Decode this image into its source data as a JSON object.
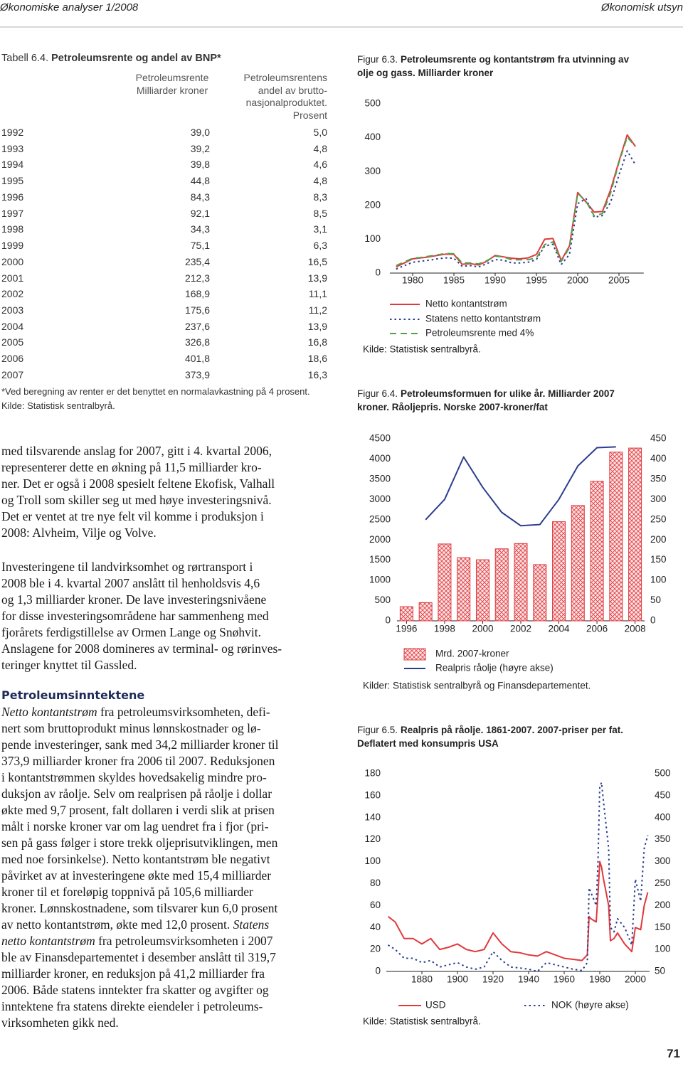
{
  "header": {
    "left": "Økonomiske analyser 1/2008",
    "right": "Økonomisk utsyn"
  },
  "table": {
    "label": "Tabell 6.4.",
    "title": "Petroleumsrente og andel av BNP*",
    "columns": [
      [
        "Petroleumsrente",
        "Milliarder kroner"
      ],
      [
        "Petroleumsrentens",
        "andel av brutto-",
        "nasjonalproduktet.",
        "Prosent"
      ]
    ],
    "rows": [
      [
        "1992",
        "39,0",
        "5,0"
      ],
      [
        "1993",
        "39,2",
        "4,8"
      ],
      [
        "1994",
        "39,8",
        "4,6"
      ],
      [
        "1995",
        "44,8",
        "4,8"
      ],
      [
        "1996",
        "84,3",
        "8,3"
      ],
      [
        "1997",
        "92,1",
        "8,5"
      ],
      [
        "1998",
        "34,3",
        "3,1"
      ],
      [
        "1999",
        "75,1",
        "6,3"
      ],
      [
        "2000",
        "235,4",
        "16,5"
      ],
      [
        "2001",
        "212,3",
        "13,9"
      ],
      [
        "2002",
        "168,9",
        "11,1"
      ],
      [
        "2003",
        "175,6",
        "11,2"
      ],
      [
        "2004",
        "237,6",
        "13,9"
      ],
      [
        "2005",
        "326,8",
        "16,8"
      ],
      [
        "2006",
        "401,8",
        "18,6"
      ],
      [
        "2007",
        "373,9",
        "16,3"
      ]
    ],
    "notes": [
      "*Ved beregning av renter er det benyttet en normalavkastning på 4 prosent.",
      "Kilde: Statistisk sentralbyrå."
    ]
  },
  "text": {
    "paragraphs": [
      {
        "lines": [
          "med tilsvarende anslag for 2007, gitt i 4. kvartal 2006,",
          "representerer dette en økning på 11,5 milliarder kro-",
          "ner. Det er også i 2008 spesielt feltene Ekofisk, Valhall",
          "og Troll som skiller seg ut med høye investeringsnivå.",
          "Det er ventet at tre nye felt vil komme i produksjon i",
          "2008: Alvheim, Vilje og Volve."
        ]
      },
      {
        "lines": [
          "Investeringene til landvirksomhet og rørtransport i",
          "2008 ble i 4. kvartal 2007 anslått til henholdsvis 4,6",
          "og 1,3 milliarder kroner. De lave investeringsnivåene",
          "for disse investeringsområdene har sammenheng med",
          "fjorårets ferdigstillelse av Ormen Lange og Snøhvit.",
          "Anslagene for 2008 domineres av terminal- og rørinves-",
          "teringer knyttet til Gassled."
        ]
      },
      {
        "heading": "Petroleumsinntektene",
        "lines": [
          [
            {
              "text": "Netto kontantstrøm",
              "italic": true
            },
            " fra petroleumsvirksomheten, defi-"
          ],
          "nert som bruttoprodukt minus lønnskostnader og lø-",
          "pende investeringer, sank med 34,2 milliarder kroner til",
          "373,9 milliarder kroner fra 2006 til 2007. Reduksjonen",
          "i kontantstrømmen skyldes hovedsakelig mindre pro-",
          "duksjon av råolje. Selv om realprisen på råolje i dollar",
          "økte med 9,7 prosent, falt dollaren i verdi slik at prisen",
          "målt i norske kroner var om lag uendret fra i fjor (pri-",
          "sen på gass følger i store trekk oljeprisutviklingen, men",
          "med noe forsinkelse). Netto kontantstrøm ble negativt",
          "påvirket av at investeringene økte med 15,4 milliarder",
          "kroner til et foreløpig toppnivå på 105,6 milliarder",
          "kroner. Lønnskostnadene, som tilsvarer kun 6,0 prosent",
          [
            "av netto kontantstrøm, økte med 12,0 prosent. ",
            {
              "text": "Statens",
              "italic": true
            }
          ],
          [
            {
              "text": "netto kontantstrøm",
              "italic": true
            },
            " fra petroleumsvirksomheten i 2007"
          ],
          "ble av Finansdepartementet i desember anslått til 319,7",
          "milliarder kroner, en reduksjon på 41,2 milliarder fra",
          "2006. Både statens inntekter fra skatter og avgifter og",
          "inntektene fra statens direkte eiendeler i petroleums-",
          "virksomheten gikk ned."
        ]
      }
    ]
  },
  "page_number": "71",
  "chart_data": [
    {
      "type": "line",
      "label": "Figur 6.3.",
      "title": [
        "Petroleumsrente og kontantstrøm fra utvinning av",
        "olje og  gass. Milliarder kroner"
      ],
      "x": [
        1978,
        1979,
        1980,
        1981,
        1982,
        1983,
        1984,
        1985,
        1986,
        1987,
        1988,
        1989,
        1990,
        1991,
        1992,
        1993,
        1994,
        1995,
        1996,
        1997,
        1998,
        1999,
        2000,
        2001,
        2002,
        2003,
        2004,
        2005,
        2006,
        2007
      ],
      "xlim": [
        1978,
        2008
      ],
      "xticks": [
        1980,
        1985,
        1990,
        1995,
        2000,
        2005
      ],
      "ylim": [
        0,
        500
      ],
      "yticks": [
        0,
        100,
        200,
        300,
        400,
        500
      ],
      "series": [
        {
          "name": "Netto kontantstrøm",
          "color": "#e0393e",
          "dash": "solid",
          "values": [
            18,
            30,
            42,
            45,
            48,
            52,
            56,
            55,
            26,
            28,
            24,
            35,
            52,
            48,
            44,
            42,
            45,
            55,
            100,
            102,
            37,
            80,
            238,
            210,
            180,
            182,
            247,
            330,
            408.1,
            373.9
          ]
        },
        {
          "name": "Statens netto kontantstrøm",
          "color": "#2b3d8f",
          "dash": "dotted",
          "values": [
            12,
            22,
            32,
            35,
            38,
            42,
            45,
            44,
            20,
            22,
            18,
            28,
            40,
            38,
            30,
            30,
            32,
            40,
            80,
            85,
            25,
            55,
            205,
            220,
            165,
            170,
            210,
            290,
            360.9,
            319.7
          ]
        },
        {
          "name": "Petroleumsrente med 4%",
          "color": "#55a04b",
          "dash": "dashed",
          "values": [
            22,
            33,
            44,
            46,
            50,
            54,
            58,
            57,
            30,
            30,
            27,
            37,
            50,
            48,
            39.0,
            39.2,
            39.8,
            44.8,
            84.3,
            92.1,
            34.3,
            75.1,
            235.4,
            212.3,
            168.9,
            175.6,
            237.6,
            326.8,
            401.8,
            373.9
          ]
        }
      ],
      "source": "Kilde: Statistisk sentralbyrå."
    },
    {
      "type": "combo",
      "label": "Figur  6.4.",
      "title": [
        "Petroleumsformuen for ulike år.  Milliarder 2007",
        "kroner. Råoljepris. Norske 2007-kroner/fat"
      ],
      "x": [
        1996,
        1997,
        1998,
        1999,
        2000,
        2001,
        2002,
        2003,
        2004,
        2005,
        2006,
        2007,
        2008
      ],
      "xlim": [
        1995.5,
        2008.5
      ],
      "xticks": [
        1996,
        1998,
        2000,
        2002,
        2004,
        2006,
        2008
      ],
      "ylim": [
        0,
        4500
      ],
      "yticks": [
        0,
        500,
        1000,
        1500,
        2000,
        2500,
        3000,
        3500,
        4000,
        4500
      ],
      "y2lim": [
        0,
        450
      ],
      "y2ticks": [
        0,
        50,
        100,
        150,
        200,
        250,
        300,
        350,
        400,
        450
      ],
      "series": [
        {
          "name": "Mrd. 2007-kroner",
          "type": "bar",
          "color": "#e0393e",
          "values": [
            350,
            450,
            1900,
            1560,
            1510,
            1780,
            1910,
            1390,
            2450,
            2850,
            3450,
            4170,
            4270
          ]
        },
        {
          "name": "Realpris råolje (høyre akse)",
          "type": "line",
          "axis": "y2",
          "color": "#2b3d8f",
          "dash": "solid",
          "values": [
            null,
            250,
            300,
            405,
            330,
            268,
            235,
            238,
            300,
            383,
            428,
            430,
            null
          ]
        }
      ],
      "source": "Kilder: Statistisk sentralbyrå og Finansdepartementet."
    },
    {
      "type": "line",
      "label": "Figur 6.5.",
      "title": [
        "Realpris på råolje. 1861-2007. 2007-priser per fat.",
        "Deflatert med konsumpris USA"
      ],
      "x": [
        1861,
        1865,
        1870,
        1875,
        1880,
        1885,
        1890,
        1895,
        1900,
        1905,
        1910,
        1915,
        1920,
        1925,
        1930,
        1935,
        1940,
        1945,
        1950,
        1955,
        1960,
        1965,
        1970,
        1973,
        1974,
        1975,
        1978,
        1979,
        1980,
        1981,
        1982,
        1985,
        1986,
        1988,
        1990,
        1994,
        1998,
        2000,
        2003,
        2005,
        2007
      ],
      "xlim": [
        1860,
        2008
      ],
      "xticks": [
        1880,
        1900,
        1920,
        1940,
        1960,
        1980,
        2000
      ],
      "ylim": [
        0,
        180
      ],
      "yticks": [
        0,
        20,
        40,
        60,
        80,
        100,
        120,
        140,
        160,
        180
      ],
      "y2lim": [
        50,
        500
      ],
      "y2ticks": [
        50,
        100,
        150,
        200,
        250,
        300,
        350,
        400,
        450,
        500
      ],
      "series": [
        {
          "name": "USD",
          "color": "#e0393e",
          "dash": "solid",
          "values": [
            50,
            45,
            30,
            30,
            25,
            30,
            20,
            22,
            25,
            20,
            18,
            20,
            35,
            25,
            18,
            17,
            15,
            14,
            18,
            15,
            12,
            11,
            10,
            15,
            50,
            48,
            45,
            70,
            100,
            95,
            85,
            60,
            28,
            30,
            35,
            25,
            18,
            40,
            38,
            60,
            72
          ]
        },
        {
          "name": "NOK (høyre akse)",
          "axis": "y2",
          "color": "#2b3d8f",
          "dash": "dotted",
          "values": [
            110,
            100,
            80,
            80,
            70,
            75,
            60,
            65,
            70,
            60,
            55,
            60,
            95,
            75,
            60,
            58,
            55,
            50,
            70,
            65,
            60,
            55,
            52,
            70,
            240,
            230,
            200,
            300,
            470,
            480,
            440,
            330,
            150,
            140,
            170,
            150,
            110,
            260,
            210,
            330,
            360
          ]
        }
      ],
      "source": "Kilde: Statistisk sentralbyrå."
    }
  ]
}
